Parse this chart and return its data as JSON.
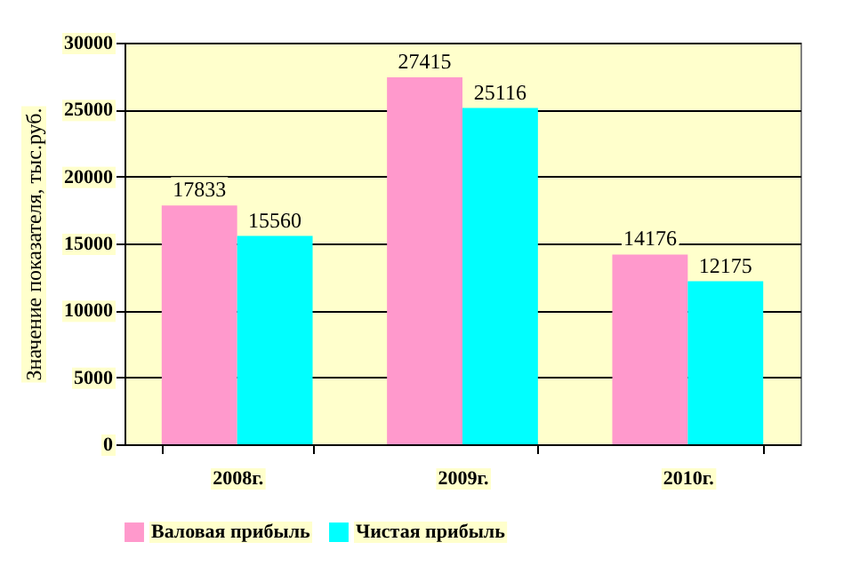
{
  "chart_data": {
    "type": "bar",
    "ylabel": "Значение показателя, тыс.руб.",
    "categories": [
      "2008г.",
      "2009г.",
      "2010г."
    ],
    "series": [
      {
        "name": "Валовая прибыль",
        "color": "#ff99cc",
        "values": [
          17833,
          27415,
          14176
        ]
      },
      {
        "name": "Чистая прибыль",
        "color": "#00ffff",
        "values": [
          15560,
          25116,
          12175
        ]
      }
    ],
    "ylim": [
      0,
      30000
    ],
    "yticks": [
      0,
      5000,
      10000,
      15000,
      20000,
      25000,
      30000
    ],
    "grid": "y",
    "legend": "bottom",
    "data_labels": true
  }
}
